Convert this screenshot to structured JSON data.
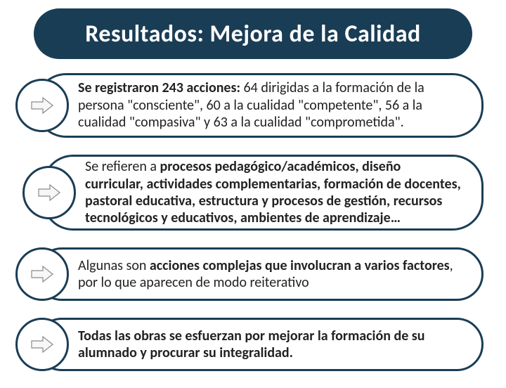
{
  "type": "infographic",
  "background_color": "#ffffff",
  "title": {
    "text": "Resultados: Mejora de la Calidad",
    "fontsize": 34,
    "color": "#ffffff",
    "band_color": "#1a3d56",
    "band_radius": 36
  },
  "arrow_icon": {
    "fill": "#f7f7f7",
    "stroke": "#8a8a8a"
  },
  "pill_border": "#1a3d56",
  "items": [
    {
      "html": "<b>Se registraron 243 acciones:</b> 64 dirigidas a la  formación de la persona \"consciente\", 60  a la cualidad \"competente\", 56 a la cualidad \"compasiva\" y 63 a la cualidad \"comprometida\"."
    },
    {
      "html": "Se refieren a <b>procesos pedagógico/académicos, diseño curricular, actividades complementarias, formación de docentes, pastoral educativa, estructura y procesos de gestión, recursos tecnológicos y educativos, ambientes de aprendizaje…</b>"
    },
    {
      "html": "Algunas son <b>acciones complejas que involucran a varios factores</b>, por lo que aparecen de modo reiterativo"
    },
    {
      "html": "<b>Todas las obras se esfuerzan por mejorar la formación de su alumnado y procurar su integralidad.</b>"
    }
  ]
}
